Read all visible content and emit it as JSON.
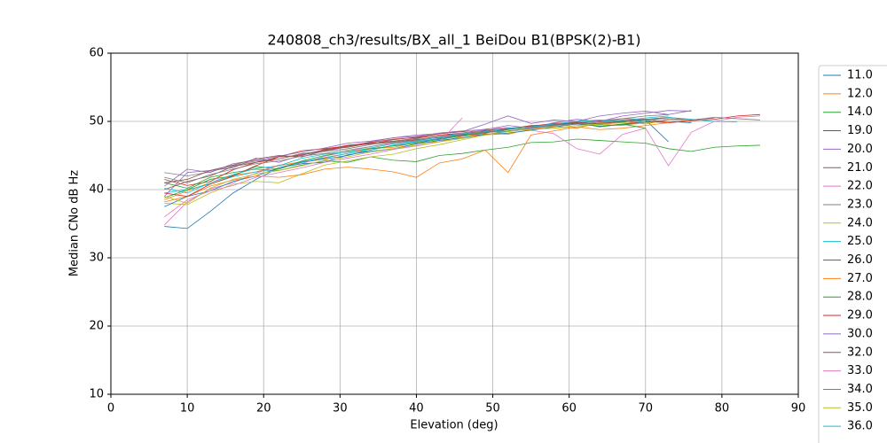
{
  "chart_data": {
    "type": "line",
    "title": "240808_ch3/results/BX_all_1 BeiDou B1(BPSK(2)-B1)",
    "x_label": "Elevation (deg)",
    "y_label": "Median CNo dB Hz",
    "xlim": [
      0,
      90
    ],
    "ylim": [
      10,
      60
    ],
    "xticks": [
      0,
      10,
      20,
      30,
      40,
      50,
      60,
      70,
      80,
      90
    ],
    "yticks": [
      10,
      20,
      30,
      40,
      50,
      60
    ],
    "grid": true,
    "legend": "right",
    "x": [
      7,
      10,
      13,
      16,
      19,
      22,
      25,
      28,
      31,
      34,
      37,
      40,
      43,
      46,
      49,
      52,
      55,
      58,
      61,
      64,
      67,
      70,
      73,
      76,
      79,
      82,
      85
    ],
    "series": [
      {
        "name": "11.0",
        "color": "#1f77b4",
        "values": [
          34.6,
          34.3,
          36.8,
          39.5,
          41.5,
          43.2,
          44.0,
          44.5,
          45.0,
          45.8,
          46.5,
          47.0,
          47.5,
          48.0,
          48.3,
          48.9,
          49.2,
          49.6,
          49.8,
          49.5,
          49.9,
          50.2,
          47.0,
          null,
          null,
          null,
          null
        ]
      },
      {
        "name": "12.0",
        "color": "#ff7f0e",
        "values": [
          38.5,
          39.8,
          41.0,
          42.1,
          42.6,
          43.5,
          44.1,
          44.6,
          45.3,
          46.0,
          46.2,
          46.9,
          47.0,
          47.8,
          48.2,
          48.1,
          48.9,
          49.3,
          49.0,
          49.8,
          50.1,
          49.6,
          50.3,
          50.0,
          null,
          null,
          null
        ]
      },
      {
        "name": "14.0",
        "color": "#2ca02c",
        "values": [
          41.0,
          40.2,
          41.8,
          42.5,
          43.0,
          42.8,
          43.6,
          44.2,
          44.0,
          44.8,
          44.3,
          44.1,
          45.0,
          45.3,
          45.8,
          46.2,
          46.9,
          47.0,
          47.4,
          47.2,
          47.0,
          46.8,
          46.0,
          45.6,
          46.2,
          46.4,
          46.5
        ]
      },
      {
        "name": "19.0",
        "color": "#d62728",
        "values": [
          41.5,
          40.6,
          41.2,
          42.9,
          44.0,
          44.5,
          45.2,
          45.8,
          46.5,
          46.8,
          47.0,
          47.3,
          47.8,
          48.1,
          48.0,
          48.6,
          49.0,
          49.5,
          49.7,
          49.3,
          49.6,
          50.0,
          49.8,
          50.1,
          50.3,
          50.8,
          51.0
        ]
      },
      {
        "name": "20.0",
        "color": "#9467bd",
        "values": [
          39.0,
          42.5,
          42.8,
          43.2,
          44.6,
          44.0,
          45.1,
          45.6,
          46.3,
          47.0,
          47.6,
          48.0,
          48.2,
          48.5,
          49.6,
          50.8,
          49.7,
          50.2,
          50.0,
          50.8,
          51.2,
          51.5,
          51.0,
          51.6,
          null,
          null,
          null
        ]
      },
      {
        "name": "21.0",
        "color": "#8c564b",
        "values": [
          40.0,
          41.2,
          42.0,
          43.4,
          44.0,
          44.8,
          45.0,
          45.9,
          46.2,
          46.8,
          47.1,
          47.5,
          48.0,
          48.3,
          48.7,
          49.0,
          49.2,
          49.5,
          49.8,
          50.1,
          50.4,
          50.3,
          50.6,
          50.2,
          50.5,
          null,
          null
        ]
      },
      {
        "name": "22.0",
        "color": "#e377c2",
        "values": [
          34.8,
          38.2,
          40.1,
          41.0,
          42.4,
          43.6,
          43.8,
          44.9,
          45.6,
          46.3,
          46.8,
          47.2,
          47.7,
          48.3,
          48.9,
          49.1,
          48.7,
          48.2,
          46.0,
          45.2,
          48.1,
          49.0,
          43.5,
          48.4,
          50.0,
          50.6,
          50.8
        ]
      },
      {
        "name": "23.0",
        "color": "#7f7f7f",
        "values": [
          42.5,
          42.0,
          42.6,
          43.5,
          44.2,
          44.5,
          45.3,
          45.6,
          46.0,
          46.6,
          47.0,
          47.4,
          47.6,
          48.0,
          48.4,
          48.8,
          49.2,
          49.5,
          49.8,
          50.0,
          50.4,
          50.8,
          51.0,
          null,
          null,
          null,
          null
        ]
      },
      {
        "name": "24.0",
        "color": "#bcbd22",
        "values": [
          38.0,
          37.8,
          39.5,
          40.8,
          41.2,
          41.0,
          42.3,
          43.6,
          44.2,
          44.8,
          45.2,
          46.0,
          46.6,
          47.3,
          48.0,
          48.2,
          48.8,
          49.0,
          49.2,
          49.6,
          49.4,
          49.8,
          50.0,
          null,
          null,
          null,
          null
        ]
      },
      {
        "name": "25.0",
        "color": "#17becf",
        "values": [
          39.5,
          40.0,
          40.8,
          41.9,
          42.6,
          43.0,
          44.1,
          44.7,
          45.3,
          45.8,
          46.5,
          47.0,
          47.3,
          47.9,
          48.4,
          48.5,
          49.1,
          49.4,
          49.8,
          50.0,
          50.2,
          50.0,
          50.6,
          50.3,
          50.0,
          49.9,
          null
        ]
      },
      {
        "name": "26.0",
        "color": "#1f77b4",
        "values": [
          37.5,
          39.0,
          39.8,
          41.2,
          42.0,
          43.2,
          43.8,
          44.0,
          45.1,
          45.6,
          46.0,
          46.7,
          47.2,
          47.6,
          48.1,
          48.3,
          48.7,
          49.2,
          49.6,
          49.3,
          49.5,
          49.9,
          50.0,
          49.8,
          null,
          null,
          null
        ]
      },
      {
        "name": "27.0",
        "color": "#ff7f0e",
        "values": [
          38.2,
          39.0,
          40.5,
          41.4,
          42.0,
          41.8,
          42.2,
          43.0,
          43.3,
          43.0,
          42.6,
          41.8,
          43.9,
          44.5,
          45.8,
          42.5,
          48.0,
          48.6,
          49.2,
          48.8,
          49.0,
          49.4,
          49.8,
          null,
          null,
          null,
          null
        ]
      },
      {
        "name": "28.0",
        "color": "#2ca02c",
        "values": [
          38.8,
          40.0,
          41.5,
          42.0,
          43.4,
          43.0,
          44.2,
          45.0,
          45.6,
          46.0,
          46.4,
          46.8,
          47.4,
          47.9,
          48.4,
          48.8,
          49.3,
          49.6,
          49.8,
          49.2,
          49.6,
          49.0,
          null,
          null,
          null,
          null,
          null
        ]
      },
      {
        "name": "29.0",
        "color": "#d62728",
        "values": [
          39.5,
          39.0,
          40.8,
          42.0,
          43.5,
          44.8,
          45.7,
          46.0,
          46.4,
          46.9,
          47.4,
          47.6,
          48.0,
          48.1,
          48.6,
          48.9,
          49.3,
          49.7,
          49.9,
          49.6,
          50.0,
          null,
          null,
          null,
          null,
          null,
          null
        ]
      },
      {
        "name": "30.0",
        "color": "#9467bd",
        "values": [
          40.5,
          43.0,
          42.5,
          43.8,
          44.3,
          44.9,
          45.5,
          46.1,
          46.8,
          47.1,
          47.6,
          47.8,
          48.3,
          48.6,
          48.8,
          49.4,
          49.0,
          49.8,
          50.3,
          50.0,
          50.8,
          51.2,
          51.6,
          51.5,
          null,
          null,
          null
        ]
      },
      {
        "name": "32.0",
        "color": "#8c564b",
        "values": [
          41.0,
          41.5,
          42.8,
          43.6,
          44.5,
          45.0,
          44.8,
          45.7,
          46.4,
          46.7,
          47.3,
          47.7,
          48.2,
          48.5,
          48.3,
          48.9,
          49.4,
          49.5,
          49.8,
          49.7,
          50.0,
          50.2,
          50.0,
          null,
          null,
          null,
          null
        ]
      },
      {
        "name": "33.0",
        "color": "#e377c2",
        "values": [
          36.0,
          38.5,
          39.8,
          40.6,
          41.8,
          42.5,
          43.2,
          44.0,
          44.6,
          45.2,
          45.9,
          46.4,
          47.0,
          50.5,
          null,
          null,
          null,
          null,
          null,
          null,
          null,
          null,
          null,
          null,
          null,
          null,
          null
        ]
      },
      {
        "name": "34.0",
        "color": "#7f7f7f",
        "values": [
          41.8,
          41.0,
          42.2,
          43.0,
          43.8,
          44.2,
          44.9,
          45.3,
          45.8,
          46.3,
          46.9,
          47.2,
          47.8,
          48.0,
          48.5,
          48.6,
          49.0,
          49.4,
          49.6,
          49.9,
          50.1,
          50.3,
          50.4,
          50.2,
          50.6,
          50.4,
          50.2
        ]
      },
      {
        "name": "35.0",
        "color": "#bcbd22",
        "values": [
          39.0,
          38.0,
          40.2,
          41.5,
          42.3,
          42.8,
          43.5,
          44.3,
          44.8,
          45.5,
          46.0,
          46.5,
          47.0,
          47.5,
          48.0,
          48.5,
          48.9,
          49.0,
          49.4,
          49.6,
          49.8,
          50.0,
          null,
          null,
          null,
          null,
          null
        ]
      },
      {
        "name": "36.0",
        "color": "#17becf",
        "values": [
          40.2,
          39.5,
          41.0,
          42.2,
          43.1,
          43.5,
          44.6,
          45.2,
          45.5,
          46.1,
          46.7,
          47.1,
          47.7,
          48.2,
          48.5,
          49.0,
          49.2,
          49.6,
          50.0,
          50.2,
          50.1,
          50.5,
          50.8,
          null,
          null,
          null,
          null
        ]
      }
    ]
  }
}
